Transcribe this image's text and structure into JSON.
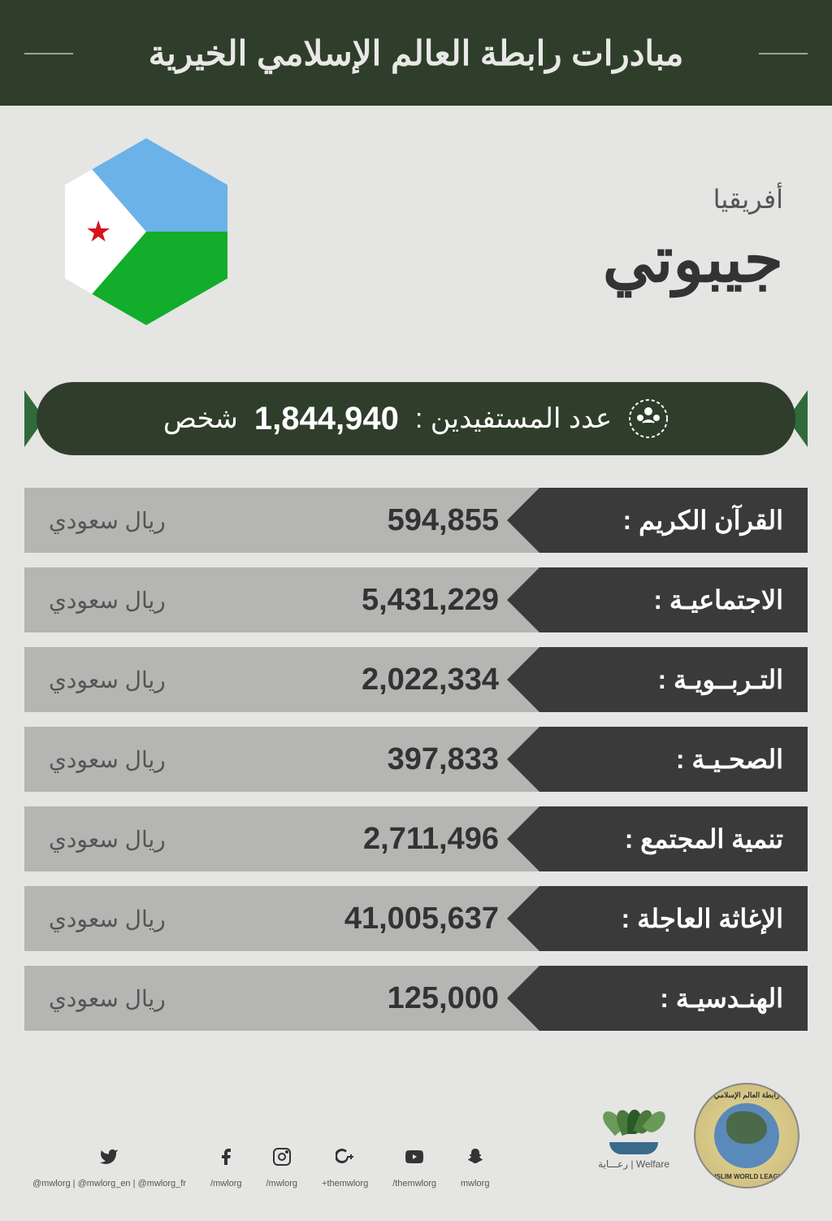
{
  "header": {
    "title": "مبادرات رابطة العالم الإسلامي الخيرية"
  },
  "country": {
    "region": "أفريقيا",
    "name": "جيبوتي",
    "flag_colors": {
      "top": "#6ab2e7",
      "bottom": "#12ad2b",
      "triangle": "#ffffff",
      "star": "#d7141a"
    }
  },
  "beneficiaries": {
    "label": "عدد المستفيدين :",
    "count": "1,844,940",
    "unit": "شخص",
    "bar_bg": "#2f3e2b",
    "arrow_color": "#2f6b3a"
  },
  "currency_label": "ريال سعودي",
  "categories": [
    {
      "label": "القرآن الكريم :",
      "value": "594,855"
    },
    {
      "label": "الاجتماعيـة :",
      "value": "5,431,229"
    },
    {
      "label": "التـربــويـة :",
      "value": "2,022,334"
    },
    {
      "label": "الصحـيـة :",
      "value": "397,833"
    },
    {
      "label": "تنمية المجتمع :",
      "value": "2,711,496"
    },
    {
      "label": "الإغاثة العاجلة :",
      "value": "41,005,637"
    },
    {
      "label": "الهنـدسيـة :",
      "value": "125,000"
    }
  ],
  "row_style": {
    "label_bg": "#3a3a3a",
    "label_color": "#ffffff",
    "value_bg": "#b5b5b3",
    "value_color": "#333333"
  },
  "footer": {
    "social": [
      {
        "icon": "twitter",
        "handle": "@mwlorg | @mwlorg_en | @mwlorg_fr"
      },
      {
        "icon": "facebook",
        "handle": "/mwlorg"
      },
      {
        "icon": "instagram",
        "handle": "/mwlorg"
      },
      {
        "icon": "gplus",
        "handle": "+themwlorg"
      },
      {
        "icon": "youtube",
        "handle": "/themwlorg"
      },
      {
        "icon": "snapchat",
        "handle": "mwlorg"
      }
    ],
    "welfare_label": "Welfare | رعـــاية",
    "mwl_ar": "رابطة العالم الإسلامي",
    "mwl_en": "MUSLIM WORLD LEAGUE"
  },
  "colors": {
    "page_bg": "#e5e5e3",
    "header_bg": "#2f3e2b",
    "header_text": "#e8e8e6"
  }
}
